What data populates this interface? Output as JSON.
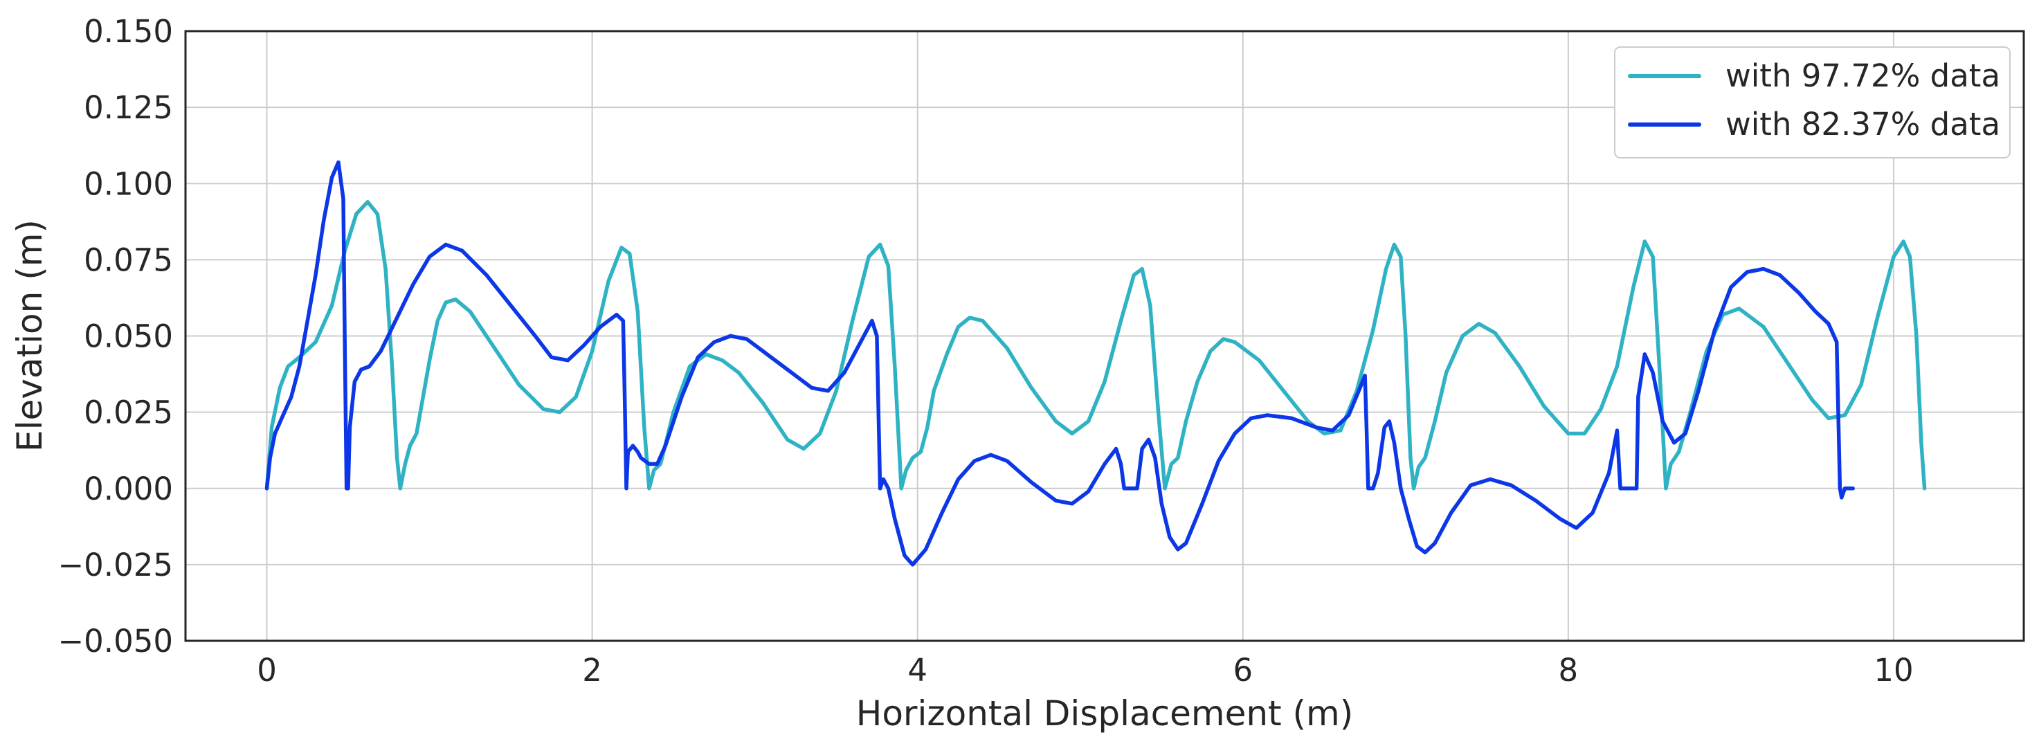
{
  "chart_data": {
    "type": "line",
    "xlabel": "Horizontal Displacement (m)",
    "ylabel": "Elevation (m)",
    "xlim": [
      -0.5,
      10.8
    ],
    "ylim": [
      -0.05,
      0.15
    ],
    "grid": true,
    "legend_position": "top-right",
    "x_ticks": [
      0,
      2,
      4,
      6,
      8,
      10
    ],
    "x_tick_labels": [
      "0",
      "2",
      "4",
      "6",
      "8",
      "10"
    ],
    "y_ticks": [
      -0.05,
      -0.025,
      0,
      0.025,
      0.05,
      0.075,
      0.1,
      0.125,
      0.15
    ],
    "y_tick_labels": [
      "−0.050",
      "−0.025",
      "0.000",
      "0.025",
      "0.050",
      "0.075",
      "0.100",
      "0.125",
      "0.150"
    ],
    "series": [
      {
        "name": "with 97.72% data",
        "color": "#2fb3c4",
        "points": [
          [
            0.0,
            0.0
          ],
          [
            0.03,
            0.02
          ],
          [
            0.08,
            0.033
          ],
          [
            0.13,
            0.04
          ],
          [
            0.2,
            0.043
          ],
          [
            0.3,
            0.048
          ],
          [
            0.4,
            0.06
          ],
          [
            0.48,
            0.078
          ],
          [
            0.55,
            0.09
          ],
          [
            0.62,
            0.094
          ],
          [
            0.68,
            0.09
          ],
          [
            0.73,
            0.072
          ],
          [
            0.77,
            0.04
          ],
          [
            0.8,
            0.01
          ],
          [
            0.82,
            0.0
          ],
          [
            0.85,
            0.008
          ],
          [
            0.88,
            0.014
          ],
          [
            0.92,
            0.018
          ],
          [
            0.96,
            0.03
          ],
          [
            1.0,
            0.042
          ],
          [
            1.05,
            0.055
          ],
          [
            1.1,
            0.061
          ],
          [
            1.16,
            0.062
          ],
          [
            1.25,
            0.058
          ],
          [
            1.4,
            0.046
          ],
          [
            1.55,
            0.034
          ],
          [
            1.7,
            0.026
          ],
          [
            1.8,
            0.025
          ],
          [
            1.9,
            0.03
          ],
          [
            2.0,
            0.045
          ],
          [
            2.1,
            0.068
          ],
          [
            2.18,
            0.079
          ],
          [
            2.23,
            0.077
          ],
          [
            2.28,
            0.058
          ],
          [
            2.32,
            0.02
          ],
          [
            2.35,
            0.0
          ],
          [
            2.38,
            0.006
          ],
          [
            2.42,
            0.008
          ],
          [
            2.5,
            0.025
          ],
          [
            2.6,
            0.04
          ],
          [
            2.7,
            0.044
          ],
          [
            2.8,
            0.042
          ],
          [
            2.9,
            0.038
          ],
          [
            3.05,
            0.028
          ],
          [
            3.2,
            0.016
          ],
          [
            3.3,
            0.013
          ],
          [
            3.4,
            0.018
          ],
          [
            3.5,
            0.032
          ],
          [
            3.6,
            0.055
          ],
          [
            3.7,
            0.076
          ],
          [
            3.77,
            0.08
          ],
          [
            3.82,
            0.073
          ],
          [
            3.86,
            0.04
          ],
          [
            3.9,
            0.0
          ],
          [
            3.93,
            0.006
          ],
          [
            3.97,
            0.01
          ],
          [
            4.02,
            0.012
          ],
          [
            4.06,
            0.02
          ],
          [
            4.1,
            0.032
          ],
          [
            4.18,
            0.044
          ],
          [
            4.25,
            0.053
          ],
          [
            4.32,
            0.056
          ],
          [
            4.4,
            0.055
          ],
          [
            4.55,
            0.046
          ],
          [
            4.7,
            0.033
          ],
          [
            4.85,
            0.022
          ],
          [
            4.95,
            0.018
          ],
          [
            5.05,
            0.022
          ],
          [
            5.15,
            0.035
          ],
          [
            5.25,
            0.055
          ],
          [
            5.33,
            0.07
          ],
          [
            5.38,
            0.072
          ],
          [
            5.43,
            0.06
          ],
          [
            5.48,
            0.025
          ],
          [
            5.52,
            0.0
          ],
          [
            5.56,
            0.008
          ],
          [
            5.6,
            0.01
          ],
          [
            5.65,
            0.022
          ],
          [
            5.72,
            0.035
          ],
          [
            5.8,
            0.045
          ],
          [
            5.88,
            0.049
          ],
          [
            5.95,
            0.048
          ],
          [
            6.1,
            0.042
          ],
          [
            6.25,
            0.032
          ],
          [
            6.4,
            0.022
          ],
          [
            6.5,
            0.018
          ],
          [
            6.6,
            0.019
          ],
          [
            6.7,
            0.032
          ],
          [
            6.8,
            0.052
          ],
          [
            6.88,
            0.072
          ],
          [
            6.93,
            0.08
          ],
          [
            6.97,
            0.076
          ],
          [
            7.0,
            0.05
          ],
          [
            7.03,
            0.01
          ],
          [
            7.05,
            0.0
          ],
          [
            7.08,
            0.007
          ],
          [
            7.12,
            0.01
          ],
          [
            7.18,
            0.022
          ],
          [
            7.25,
            0.038
          ],
          [
            7.35,
            0.05
          ],
          [
            7.45,
            0.054
          ],
          [
            7.55,
            0.051
          ],
          [
            7.7,
            0.04
          ],
          [
            7.85,
            0.027
          ],
          [
            8.0,
            0.018
          ],
          [
            8.1,
            0.018
          ],
          [
            8.2,
            0.026
          ],
          [
            8.3,
            0.04
          ],
          [
            8.4,
            0.066
          ],
          [
            8.47,
            0.081
          ],
          [
            8.52,
            0.076
          ],
          [
            8.56,
            0.04
          ],
          [
            8.6,
            0.0
          ],
          [
            8.63,
            0.008
          ],
          [
            8.68,
            0.012
          ],
          [
            8.75,
            0.025
          ],
          [
            8.85,
            0.045
          ],
          [
            8.95,
            0.057
          ],
          [
            9.05,
            0.059
          ],
          [
            9.2,
            0.053
          ],
          [
            9.35,
            0.041
          ],
          [
            9.5,
            0.029
          ],
          [
            9.6,
            0.023
          ],
          [
            9.7,
            0.024
          ],
          [
            9.8,
            0.034
          ],
          [
            9.9,
            0.056
          ],
          [
            10.0,
            0.076
          ],
          [
            10.06,
            0.081
          ],
          [
            10.1,
            0.076
          ],
          [
            10.14,
            0.05
          ],
          [
            10.17,
            0.015
          ],
          [
            10.19,
            0.0
          ]
        ]
      },
      {
        "name": "with 82.37% data",
        "color": "#0b37e6",
        "points": [
          [
            0.0,
            0.0
          ],
          [
            0.02,
            0.01
          ],
          [
            0.05,
            0.018
          ],
          [
            0.1,
            0.024
          ],
          [
            0.15,
            0.03
          ],
          [
            0.2,
            0.04
          ],
          [
            0.25,
            0.055
          ],
          [
            0.3,
            0.07
          ],
          [
            0.35,
            0.088
          ],
          [
            0.4,
            0.102
          ],
          [
            0.44,
            0.107
          ],
          [
            0.47,
            0.095
          ],
          [
            0.48,
            0.045
          ],
          [
            0.49,
            0.0
          ],
          [
            0.5,
            0.0
          ],
          [
            0.51,
            0.02
          ],
          [
            0.54,
            0.035
          ],
          [
            0.58,
            0.039
          ],
          [
            0.63,
            0.04
          ],
          [
            0.7,
            0.045
          ],
          [
            0.8,
            0.056
          ],
          [
            0.9,
            0.067
          ],
          [
            1.0,
            0.076
          ],
          [
            1.1,
            0.08
          ],
          [
            1.2,
            0.078
          ],
          [
            1.35,
            0.07
          ],
          [
            1.5,
            0.06
          ],
          [
            1.65,
            0.05
          ],
          [
            1.75,
            0.043
          ],
          [
            1.85,
            0.042
          ],
          [
            1.95,
            0.047
          ],
          [
            2.05,
            0.053
          ],
          [
            2.15,
            0.057
          ],
          [
            2.19,
            0.055
          ],
          [
            2.2,
            0.03
          ],
          [
            2.21,
            0.0
          ],
          [
            2.22,
            0.012
          ],
          [
            2.25,
            0.014
          ],
          [
            2.28,
            0.012
          ],
          [
            2.3,
            0.01
          ],
          [
            2.35,
            0.008
          ],
          [
            2.4,
            0.008
          ],
          [
            2.45,
            0.014
          ],
          [
            2.55,
            0.03
          ],
          [
            2.65,
            0.043
          ],
          [
            2.75,
            0.048
          ],
          [
            2.85,
            0.05
          ],
          [
            2.95,
            0.049
          ],
          [
            3.05,
            0.045
          ],
          [
            3.2,
            0.039
          ],
          [
            3.35,
            0.033
          ],
          [
            3.45,
            0.032
          ],
          [
            3.55,
            0.038
          ],
          [
            3.65,
            0.048
          ],
          [
            3.72,
            0.055
          ],
          [
            3.75,
            0.05
          ],
          [
            3.77,
            0.0
          ],
          [
            3.79,
            0.003
          ],
          [
            3.82,
            0.0
          ],
          [
            3.86,
            -0.01
          ],
          [
            3.92,
            -0.022
          ],
          [
            3.97,
            -0.025
          ],
          [
            4.05,
            -0.02
          ],
          [
            4.15,
            -0.008
          ],
          [
            4.25,
            0.003
          ],
          [
            4.35,
            0.009
          ],
          [
            4.45,
            0.011
          ],
          [
            4.55,
            0.009
          ],
          [
            4.7,
            0.002
          ],
          [
            4.85,
            -0.004
          ],
          [
            4.95,
            -0.005
          ],
          [
            5.05,
            -0.001
          ],
          [
            5.15,
            0.008
          ],
          [
            5.22,
            0.013
          ],
          [
            5.25,
            0.008
          ],
          [
            5.27,
            0.0
          ],
          [
            5.3,
            0.0
          ],
          [
            5.35,
            0.0
          ],
          [
            5.38,
            0.013
          ],
          [
            5.42,
            0.016
          ],
          [
            5.46,
            0.01
          ],
          [
            5.5,
            -0.005
          ],
          [
            5.55,
            -0.016
          ],
          [
            5.6,
            -0.02
          ],
          [
            5.65,
            -0.018
          ],
          [
            5.75,
            -0.005
          ],
          [
            5.85,
            0.009
          ],
          [
            5.95,
            0.018
          ],
          [
            6.05,
            0.023
          ],
          [
            6.15,
            0.024
          ],
          [
            6.3,
            0.023
          ],
          [
            6.45,
            0.02
          ],
          [
            6.55,
            0.019
          ],
          [
            6.65,
            0.024
          ],
          [
            6.72,
            0.033
          ],
          [
            6.75,
            0.037
          ],
          [
            6.76,
            0.02
          ],
          [
            6.77,
            0.0
          ],
          [
            6.8,
            0.0
          ],
          [
            6.83,
            0.005
          ],
          [
            6.87,
            0.02
          ],
          [
            6.9,
            0.022
          ],
          [
            6.93,
            0.015
          ],
          [
            6.97,
            0.0
          ],
          [
            7.02,
            -0.01
          ],
          [
            7.07,
            -0.019
          ],
          [
            7.12,
            -0.021
          ],
          [
            7.18,
            -0.018
          ],
          [
            7.28,
            -0.008
          ],
          [
            7.4,
            0.001
          ],
          [
            7.52,
            0.003
          ],
          [
            7.65,
            0.001
          ],
          [
            7.8,
            -0.004
          ],
          [
            7.95,
            -0.01
          ],
          [
            8.05,
            -0.013
          ],
          [
            8.15,
            -0.008
          ],
          [
            8.25,
            0.005
          ],
          [
            8.3,
            0.019
          ],
          [
            8.32,
            0.0
          ],
          [
            8.37,
            0.0
          ],
          [
            8.42,
            0.0
          ],
          [
            8.43,
            0.03
          ],
          [
            8.47,
            0.044
          ],
          [
            8.52,
            0.038
          ],
          [
            8.58,
            0.022
          ],
          [
            8.65,
            0.015
          ],
          [
            8.72,
            0.018
          ],
          [
            8.8,
            0.032
          ],
          [
            8.9,
            0.052
          ],
          [
            9.0,
            0.066
          ],
          [
            9.1,
            0.071
          ],
          [
            9.2,
            0.072
          ],
          [
            9.3,
            0.07
          ],
          [
            9.42,
            0.064
          ],
          [
            9.52,
            0.058
          ],
          [
            9.6,
            0.054
          ],
          [
            9.65,
            0.048
          ],
          [
            9.67,
            0.0
          ],
          [
            9.68,
            -0.003
          ],
          [
            9.7,
            0.0
          ],
          [
            9.75,
            0.0
          ]
        ]
      }
    ]
  }
}
